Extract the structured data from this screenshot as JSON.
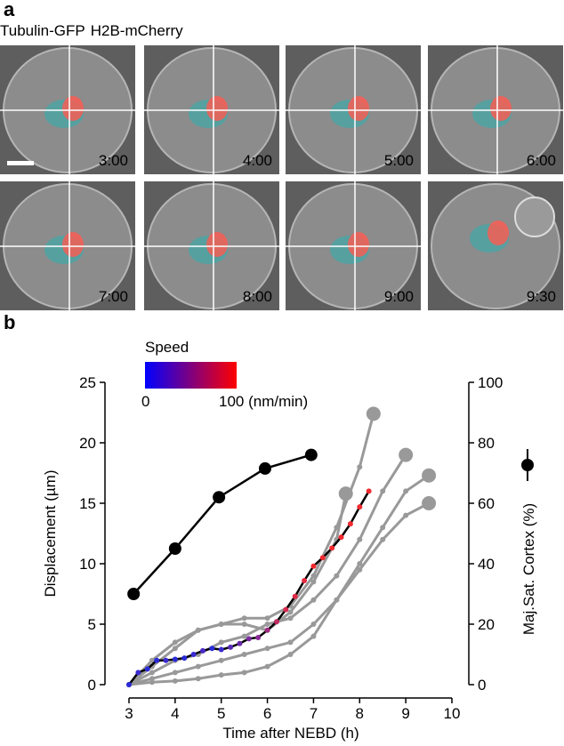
{
  "panel_a": {
    "label": "a",
    "legend": [
      {
        "text": "Tubulin-GFP",
        "color": "#2ab0b0"
      },
      {
        "text": "H2B-mCherry",
        "color": "#e8503c"
      }
    ],
    "frames": [
      "3:00",
      "4:00",
      "5:00",
      "6:00",
      "7:00",
      "8:00",
      "9:00",
      "9:30"
    ]
  },
  "chart_data": {
    "type": "line",
    "panel_label": "b",
    "x_label": "Time after NEBD (h)",
    "y_label": "Displacement (µm)",
    "xlim": [
      3,
      10
    ],
    "xticks": [
      3,
      4,
      5,
      6,
      7,
      8,
      9,
      10
    ],
    "ylim": [
      0,
      25
    ],
    "yticks": [
      0,
      5,
      10,
      15,
      20,
      25
    ],
    "y2lim": [
      0,
      100
    ],
    "y2ticks": [
      0,
      20,
      40,
      60,
      80,
      100
    ],
    "colorbar": {
      "title": "Speed",
      "colors": [
        "#0000ff",
        "#ff0000"
      ],
      "ticks": [
        0,
        {
          "value": 100,
          "label": "100 (nm/min)"
        }
      ]
    },
    "series": [
      {
        "color": "#999999",
        "x": [
          3.0,
          3.5,
          4.0,
          4.5,
          5.0,
          5.5,
          6.0,
          6.5,
          7.0,
          7.5,
          8.0,
          8.3
        ],
        "values": [
          0,
          2,
          3.5,
          4.5,
          5,
          5.5,
          5.5,
          6.5,
          9,
          13,
          18,
          22.4
        ]
      },
      {
        "color": "#999999",
        "x": [
          3.0,
          3.5,
          4.0,
          4.5,
          5.0,
          5.5,
          6.0,
          6.5,
          7.0,
          7.5,
          8.0,
          8.5,
          9.0
        ],
        "values": [
          0,
          1,
          2,
          2.5,
          3.5,
          4,
          5,
          5.5,
          7,
          9,
          12,
          16,
          19
        ]
      },
      {
        "color": "#999999",
        "x": [
          3.0,
          3.5,
          4.0,
          4.5,
          5.0,
          5.5,
          6.0,
          6.5,
          7.0,
          7.5,
          8.0,
          8.5,
          9.0,
          9.5
        ],
        "values": [
          0,
          0.5,
          1,
          1.5,
          2,
          2.5,
          3,
          3.5,
          5,
          7,
          10,
          13,
          16,
          17.3
        ]
      },
      {
        "color": "#999999",
        "x": [
          3.0,
          3.5,
          4.0,
          4.5,
          5.0,
          5.5,
          6.0,
          6.5,
          7.0,
          7.5,
          8.0,
          8.5,
          9.0,
          9.5
        ],
        "values": [
          0,
          0.2,
          0.3,
          0.5,
          0.8,
          1,
          1.5,
          2.5,
          4,
          7,
          9.5,
          12,
          14,
          15
        ]
      },
      {
        "color": "#999999",
        "x": [
          3.0,
          3.5,
          4.0,
          4.5,
          5.0,
          5.5,
          6.0,
          6.5,
          7.0,
          7.5,
          7.7
        ],
        "values": [
          0,
          1.5,
          3,
          4.5,
          5,
          5,
          4.5,
          6,
          8.5,
          12,
          15.8
        ]
      },
      {
        "color": "#000000",
        "x": [
          3.0,
          3.2,
          3.4,
          3.6,
          3.8,
          4.0,
          4.2,
          4.4,
          4.6,
          4.8,
          5.0,
          5.2,
          5.4,
          5.6,
          5.8,
          6.0,
          6.2,
          6.4,
          6.6,
          6.8,
          7.0,
          7.2,
          7.4,
          7.6,
          7.8,
          8.0,
          8.2
        ],
        "values": [
          0,
          1,
          1.3,
          2,
          2,
          2.1,
          2.2,
          2.5,
          2.8,
          3,
          2.9,
          3.1,
          3.4,
          3.8,
          3.9,
          4.5,
          5.2,
          6.2,
          7.3,
          8.6,
          9.8,
          10.5,
          11.3,
          12.2,
          13.3,
          14.7,
          16
        ],
        "point_colors": [
          "#2a2ad8",
          "#3a2ad0",
          "#2a2ad8",
          "#2a2ad8",
          "#3a2ad0",
          "#2a2ad8",
          "#2a2ad8",
          "#3a2ad0",
          "#4a2ac8",
          "#2a2ad8",
          "#3a2ad0",
          "#5a2ab8",
          "#6a2aa8",
          "#7a2aa0",
          "#8a2a98",
          "#a02a80",
          "#c02a60",
          "#d82a50",
          "#e02a48",
          "#e82a40",
          "#f02a30",
          "#f02a30",
          "#f02a30",
          "#f02a30",
          "#f02a30",
          "#f02a30",
          "#f02a30"
        ]
      },
      {
        "name": "Maj.Sat. Cortex (%)",
        "axis": "y2",
        "color": "#000000",
        "x": [
          3.1,
          4.0,
          4.95,
          5.95,
          6.95
        ],
        "values": [
          30,
          45,
          62,
          71.5,
          76
        ]
      }
    ]
  }
}
